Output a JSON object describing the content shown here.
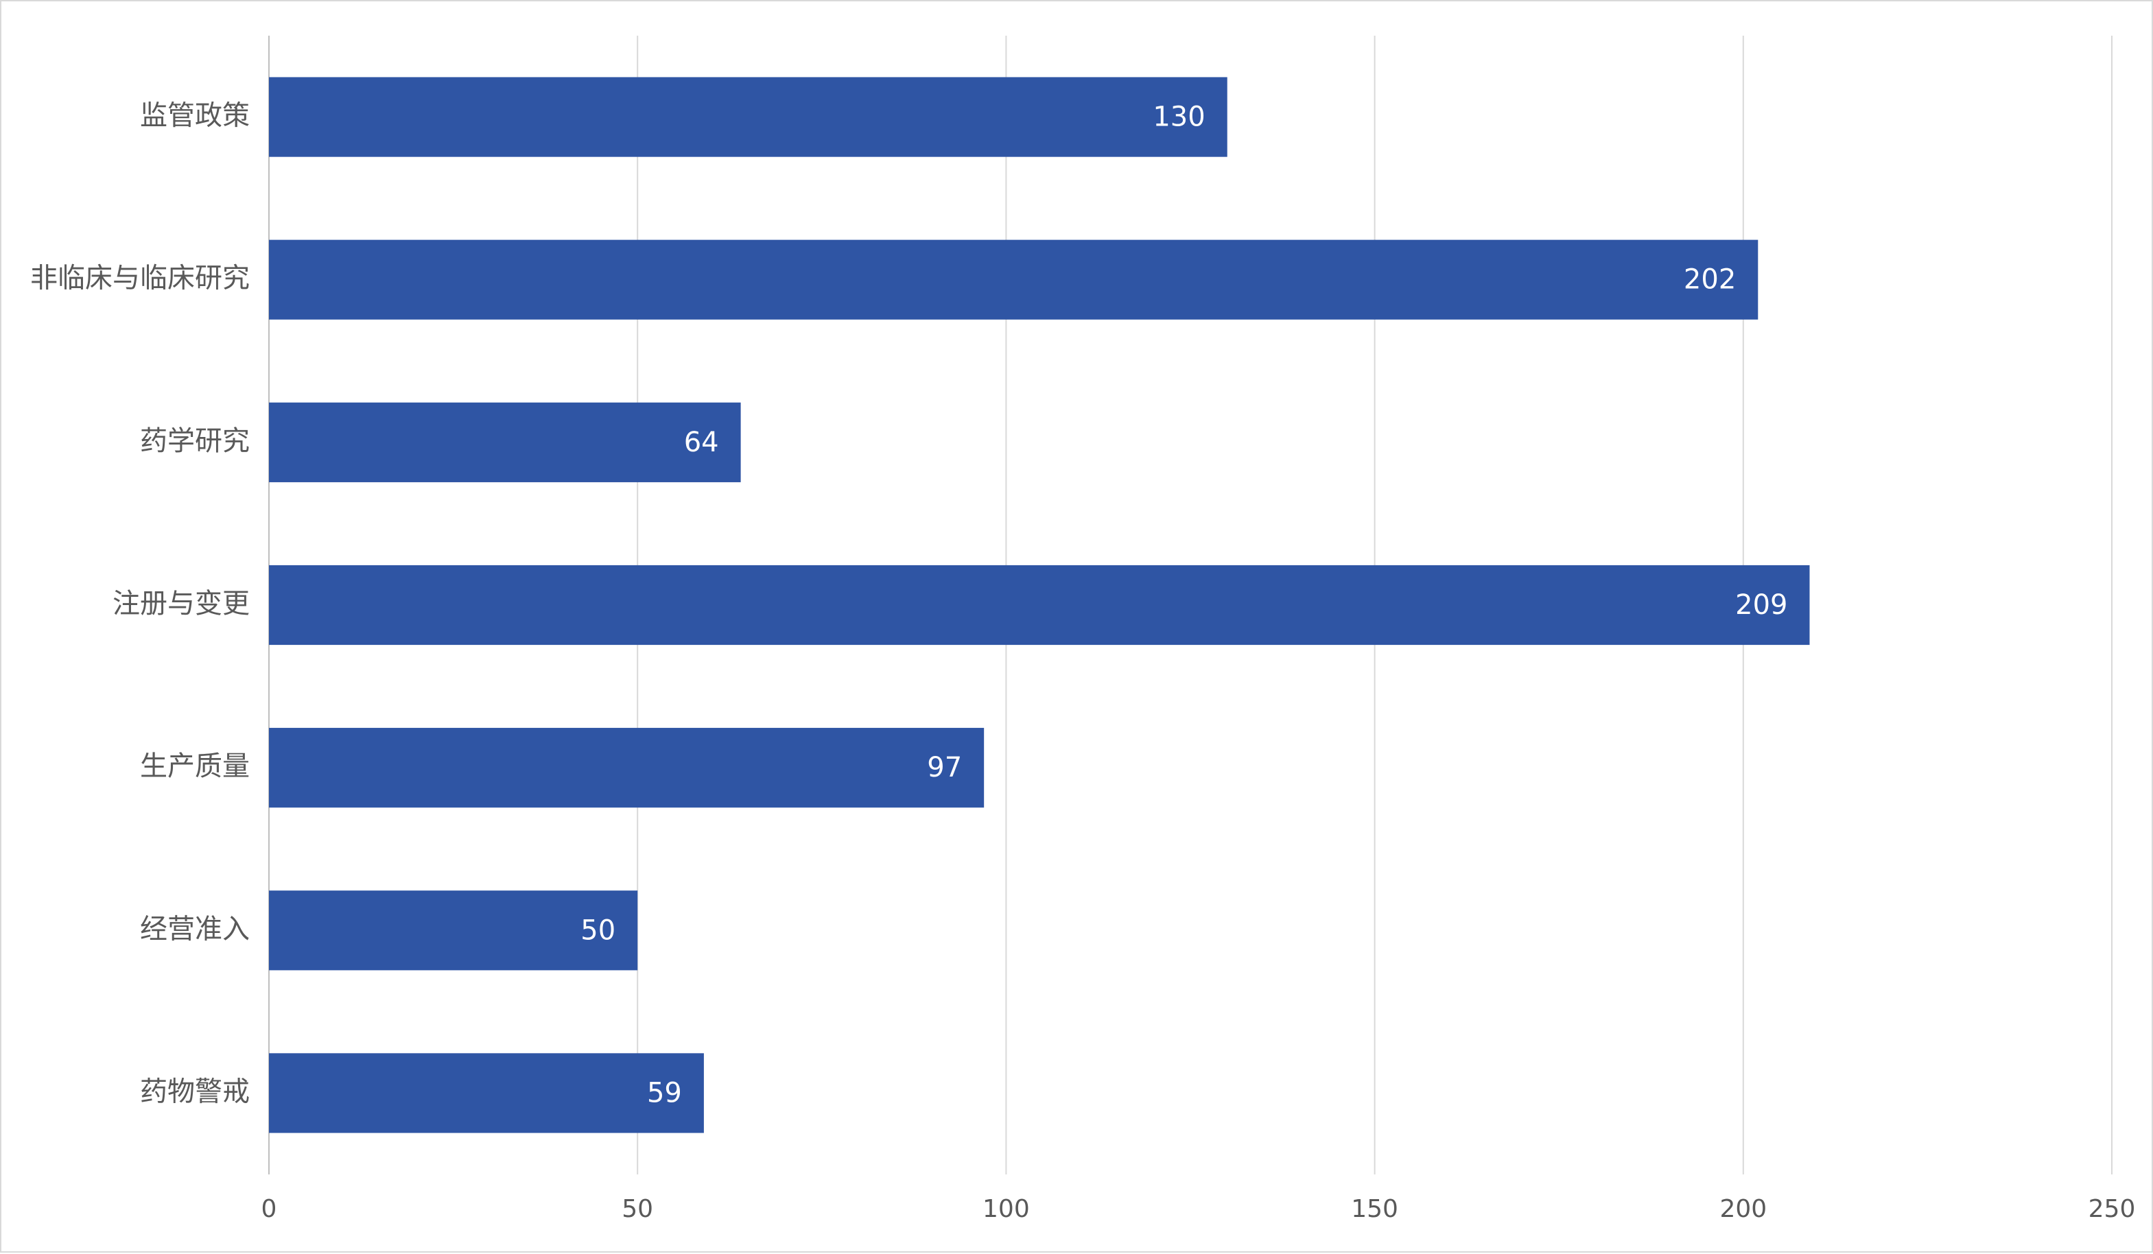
{
  "chart_data": {
    "type": "bar",
    "orientation": "horizontal",
    "categories": [
      "监管政策",
      "非临床与临床研究",
      "药学研究",
      "注册与变更",
      "生产质量",
      "经营准入",
      "药物警戒"
    ],
    "values": [
      130,
      202,
      64,
      209,
      97,
      50,
      59
    ],
    "color": "#2f55a4",
    "xlim": [
      0,
      250
    ],
    "xticks": [
      0,
      50,
      100,
      150,
      200,
      250
    ],
    "grid": true,
    "data_labels": true
  }
}
